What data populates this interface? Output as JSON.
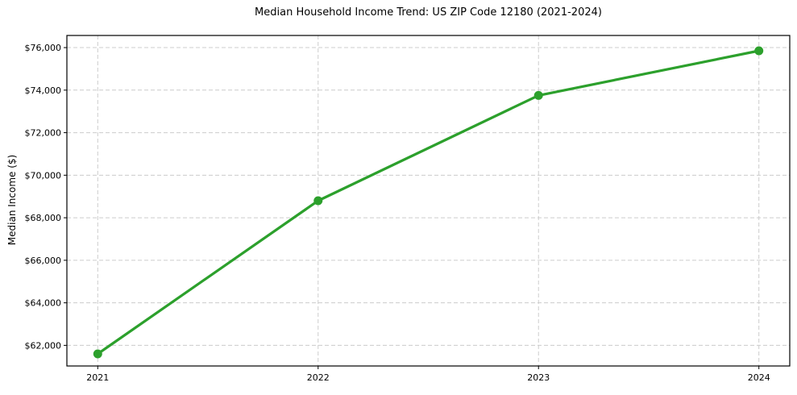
{
  "page": {
    "background": "#ffffff"
  },
  "chart_data": {
    "type": "line",
    "title": "Median Household Income Trend: US ZIP Code 12180 (2021-2024)",
    "xlabel": "",
    "ylabel": "Median Income ($)",
    "x": [
      2021,
      2022,
      2023,
      2024
    ],
    "values": [
      61600,
      68800,
      73750,
      75850
    ],
    "xticks": [
      2021,
      2022,
      2023,
      2024
    ],
    "yticks": [
      62000,
      64000,
      66000,
      68000,
      70000,
      72000,
      74000,
      76000
    ],
    "ytick_prefix": "$",
    "xlim": [
      2020.86,
      2024.14
    ],
    "ylim": [
      61030,
      76570
    ],
    "grid": true,
    "grid_style": "dashed",
    "legend": "none",
    "line_color": "#2ca02c",
    "marker": "circle",
    "grid_color": "#cccccc",
    "axis_color": "#000000",
    "text_color": "#000000"
  }
}
